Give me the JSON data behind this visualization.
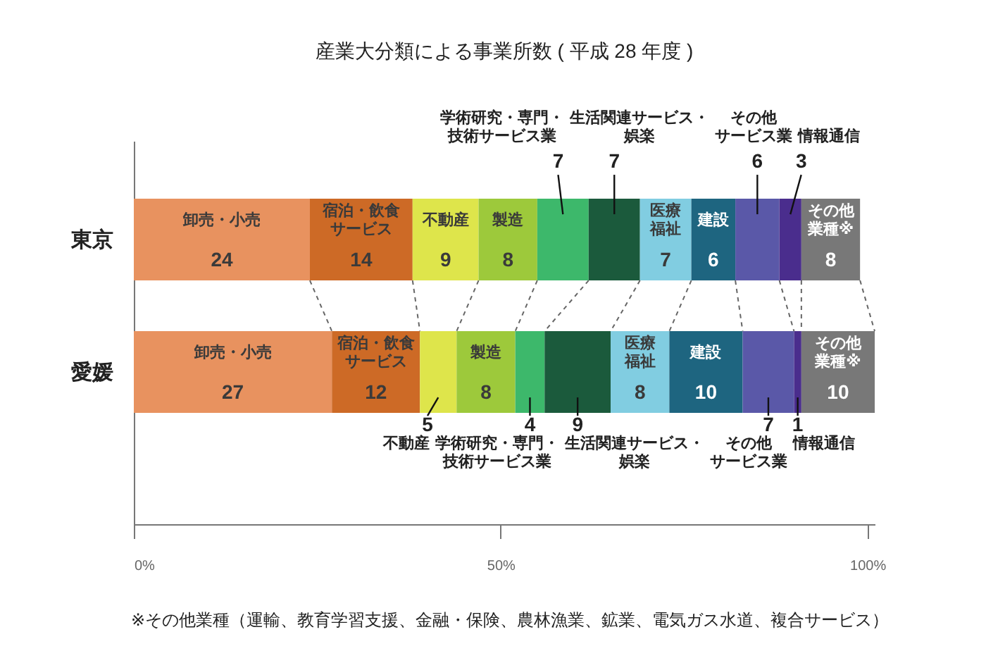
{
  "chart_data": {
    "type": "bar",
    "orientation": "horizontal",
    "stacked": true,
    "title": "産業大分類による事業所数 ( 平成 28 年度 )",
    "categories": [
      "東京",
      "愛媛"
    ],
    "series": [
      {
        "name": "卸売・小売",
        "color": "#e8925f",
        "values": [
          24,
          27
        ]
      },
      {
        "name": "宿泊・飲食サービス",
        "color": "#cd6a26",
        "values": [
          14,
          12
        ]
      },
      {
        "name": "不動産",
        "color": "#dee54b",
        "values": [
          9,
          5
        ]
      },
      {
        "name": "製造",
        "color": "#9dc93b",
        "values": [
          8,
          8
        ]
      },
      {
        "name": "学術研究・専門・技術サービス業",
        "color": "#3db86b",
        "values": [
          7,
          4
        ]
      },
      {
        "name": "生活関連サービス・娯楽",
        "color": "#1b5a3c",
        "values": [
          7,
          9
        ]
      },
      {
        "name": "医療福祉",
        "color": "#81cde1",
        "values": [
          7,
          8
        ]
      },
      {
        "name": "建設",
        "color": "#1e6580",
        "values": [
          6,
          10
        ]
      },
      {
        "name": "その他サービス業",
        "color": "#5a58a8",
        "values": [
          6,
          7
        ]
      },
      {
        "name": "情報通信",
        "color": "#4a2d8d",
        "values": [
          3,
          1
        ]
      },
      {
        "name": "その他業種※",
        "color": "#787878",
        "values": [
          8,
          10
        ]
      }
    ],
    "xlim": [
      0,
      101
    ],
    "xticks": [
      {
        "value": 0,
        "label": "0%"
      },
      {
        "value": 50,
        "label": "50%"
      },
      {
        "value": 100,
        "label": "100%"
      }
    ],
    "data_labels": true,
    "legend": false,
    "grid": false,
    "annotations": [
      "※その他業種（運輸、教育学習支援、金融・保険、農林漁業、鉱業、電気ガス水道、複合サービス）"
    ]
  }
}
